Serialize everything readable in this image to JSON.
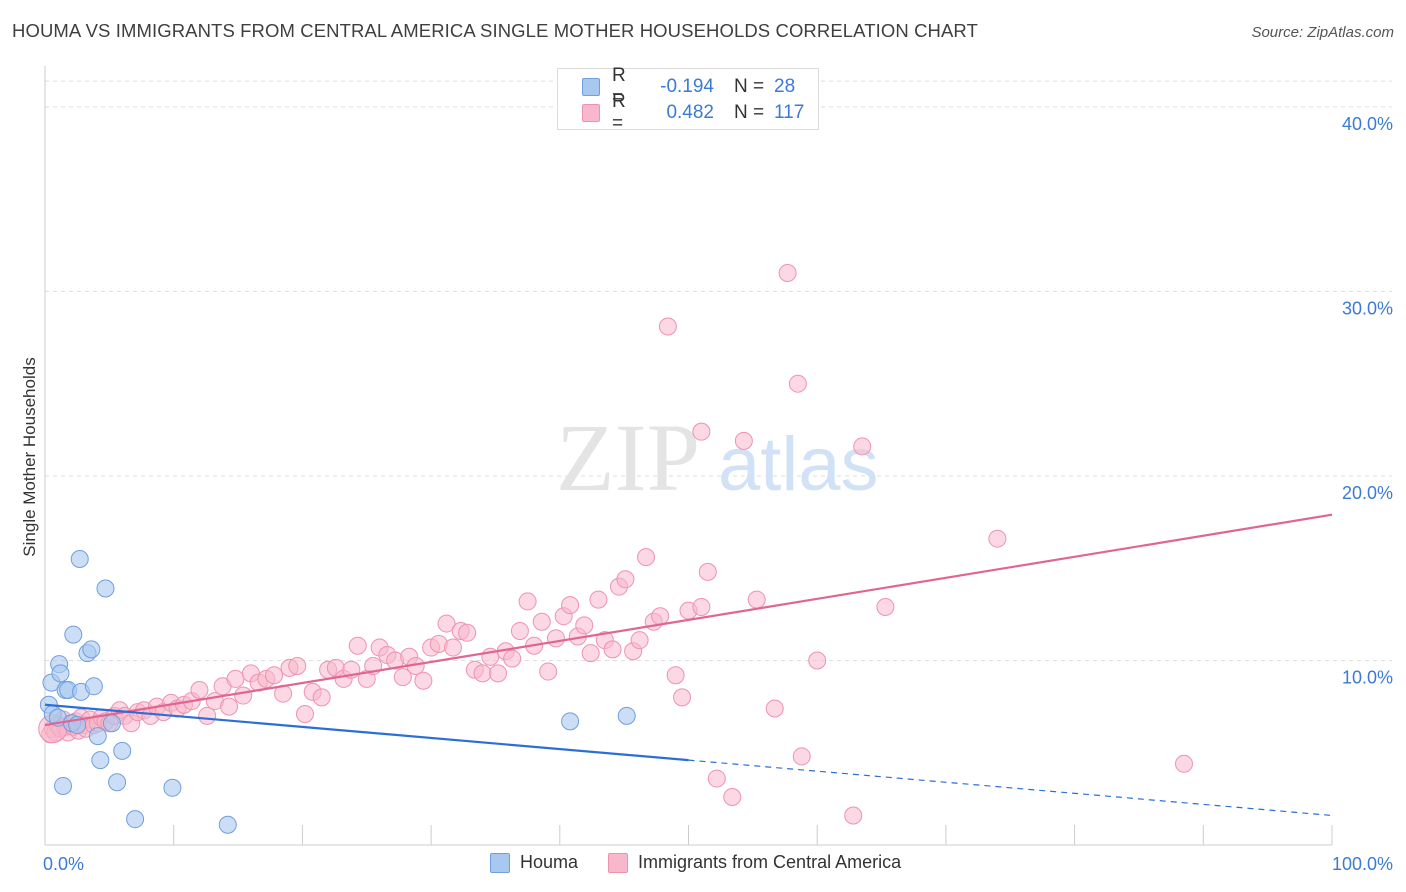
{
  "title": "HOUMA VS IMMIGRANTS FROM CENTRAL AMERICA SINGLE MOTHER HOUSEHOLDS CORRELATION CHART",
  "source": "Source: ZipAtlas.com",
  "watermark": {
    "zip": "ZIP",
    "atlas": "atlas"
  },
  "legend": {
    "rows": [
      {
        "r_label": "R =",
        "r_value": "-0.194",
        "n_label": "N =",
        "n_value": "28"
      },
      {
        "r_label": "R =",
        "r_value": "0.482",
        "n_label": "N =",
        "n_value": "117"
      }
    ]
  },
  "bottom_legend": {
    "houma": "Houma",
    "immigrants": "Immigrants from Central America"
  },
  "colors": {
    "houma_fill": "#a9c8f0",
    "houma_stroke": "#6f9fe0",
    "houma_line": "#2b6fd6",
    "imm_fill": "#f7b8cc",
    "imm_stroke": "#ef92b0",
    "imm_line": "#e0668f",
    "axis_label": "#3a7bd5",
    "grid": "#dddddd"
  },
  "chart_data": {
    "type": "scatter",
    "title": "HOUMA VS IMMIGRANTS FROM CENTRAL AMERICA SINGLE MOTHER HOUSEHOLDS CORRELATION CHART",
    "xlabel": "",
    "ylabel": "Single Mother Households",
    "xlim": [
      0,
      100
    ],
    "ylim": [
      0,
      42
    ],
    "x_tick_labels": [
      "0.0%",
      "100.0%"
    ],
    "y_ticks": [
      10,
      20,
      30,
      40
    ],
    "y_tick_labels": [
      "10.0%",
      "20.0%",
      "30.0%",
      "40.0%"
    ],
    "grid": true,
    "legend_position": "top-center",
    "series": [
      {
        "name": "Houma",
        "r": -0.194,
        "n": 28,
        "points": [
          [
            0.3,
            7.6
          ],
          [
            0.5,
            8.8
          ],
          [
            0.6,
            7.1
          ],
          [
            1.0,
            6.9
          ],
          [
            1.1,
            9.8
          ],
          [
            1.2,
            9.3
          ],
          [
            1.4,
            3.2
          ],
          [
            1.6,
            8.4
          ],
          [
            1.8,
            8.4
          ],
          [
            2.1,
            6.6
          ],
          [
            2.2,
            11.4
          ],
          [
            2.5,
            6.5
          ],
          [
            2.7,
            15.5
          ],
          [
            2.8,
            8.3
          ],
          [
            3.3,
            10.4
          ],
          [
            3.6,
            10.6
          ],
          [
            3.8,
            8.6
          ],
          [
            4.1,
            5.9
          ],
          [
            4.3,
            4.6
          ],
          [
            4.7,
            13.9
          ],
          [
            5.2,
            6.6
          ],
          [
            5.6,
            3.4
          ],
          [
            6.0,
            5.1
          ],
          [
            7.0,
            1.4
          ],
          [
            9.9,
            3.1
          ],
          [
            14.2,
            1.1
          ],
          [
            40.8,
            6.7
          ],
          [
            45.2,
            7.0
          ]
        ],
        "trend": {
          "x0": 0,
          "y0": 7.6,
          "x1": 50.0,
          "y1": 4.6,
          "x_end": 100,
          "y_end": 1.6
        }
      },
      {
        "name": "Immigrants from Central America",
        "r": 0.482,
        "n": 117,
        "points": [
          [
            0.4,
            6.0
          ],
          [
            0.6,
            6.3
          ],
          [
            0.8,
            6.1
          ],
          [
            1.0,
            6.5
          ],
          [
            1.2,
            6.3
          ],
          [
            1.4,
            6.8
          ],
          [
            1.6,
            6.4
          ],
          [
            1.8,
            6.1
          ],
          [
            2.0,
            6.6
          ],
          [
            2.2,
            6.4
          ],
          [
            2.4,
            6.7
          ],
          [
            2.6,
            6.2
          ],
          [
            2.8,
            6.9
          ],
          [
            3.0,
            6.5
          ],
          [
            3.2,
            6.3
          ],
          [
            3.5,
            6.8
          ],
          [
            3.8,
            6.5
          ],
          [
            4.1,
            6.6
          ],
          [
            4.4,
            6.9
          ],
          [
            4.7,
            6.7
          ],
          [
            5.0,
            6.6
          ],
          [
            5.4,
            7.0
          ],
          [
            5.8,
            7.3
          ],
          [
            6.2,
            7.0
          ],
          [
            6.7,
            6.6
          ],
          [
            7.2,
            7.2
          ],
          [
            7.7,
            7.3
          ],
          [
            8.2,
            7.0
          ],
          [
            8.7,
            7.5
          ],
          [
            9.2,
            7.2
          ],
          [
            9.8,
            7.7
          ],
          [
            10.3,
            7.4
          ],
          [
            10.8,
            7.6
          ],
          [
            11.4,
            7.8
          ],
          [
            12.0,
            8.4
          ],
          [
            12.6,
            7.0
          ],
          [
            13.2,
            7.8
          ],
          [
            13.8,
            8.6
          ],
          [
            14.3,
            7.5
          ],
          [
            14.8,
            9.0
          ],
          [
            15.4,
            8.1
          ],
          [
            16.0,
            9.3
          ],
          [
            16.6,
            8.8
          ],
          [
            17.2,
            9.0
          ],
          [
            17.8,
            9.2
          ],
          [
            18.5,
            8.2
          ],
          [
            19.0,
            9.6
          ],
          [
            19.6,
            9.7
          ],
          [
            20.2,
            7.1
          ],
          [
            20.8,
            8.3
          ],
          [
            21.5,
            8.0
          ],
          [
            22.0,
            9.5
          ],
          [
            22.6,
            9.6
          ],
          [
            23.2,
            9.0
          ],
          [
            23.8,
            9.5
          ],
          [
            24.3,
            10.8
          ],
          [
            25.0,
            9.0
          ],
          [
            25.5,
            9.7
          ],
          [
            26.0,
            10.7
          ],
          [
            26.6,
            10.3
          ],
          [
            27.2,
            10.0
          ],
          [
            27.8,
            9.1
          ],
          [
            28.3,
            10.2
          ],
          [
            28.8,
            9.7
          ],
          [
            29.4,
            8.9
          ],
          [
            30.0,
            10.7
          ],
          [
            30.6,
            10.9
          ],
          [
            31.2,
            12.0
          ],
          [
            31.7,
            10.7
          ],
          [
            32.3,
            11.6
          ],
          [
            32.8,
            11.5
          ],
          [
            33.4,
            9.5
          ],
          [
            34.0,
            9.3
          ],
          [
            34.6,
            10.2
          ],
          [
            35.2,
            9.3
          ],
          [
            35.8,
            10.5
          ],
          [
            36.3,
            10.1
          ],
          [
            36.9,
            11.6
          ],
          [
            37.5,
            13.2
          ],
          [
            38.0,
            10.8
          ],
          [
            38.6,
            12.1
          ],
          [
            39.1,
            9.4
          ],
          [
            39.7,
            11.2
          ],
          [
            40.3,
            12.4
          ],
          [
            40.8,
            13.0
          ],
          [
            41.4,
            11.3
          ],
          [
            41.9,
            11.9
          ],
          [
            42.4,
            10.4
          ],
          [
            43.0,
            13.3
          ],
          [
            43.5,
            11.1
          ],
          [
            44.1,
            10.6
          ],
          [
            44.6,
            14.0
          ],
          [
            45.1,
            14.4
          ],
          [
            45.7,
            10.5
          ],
          [
            46.2,
            11.1
          ],
          [
            46.7,
            15.6
          ],
          [
            47.3,
            12.1
          ],
          [
            47.8,
            12.4
          ],
          [
            48.4,
            28.1
          ],
          [
            49.0,
            9.2
          ],
          [
            49.5,
            8.0
          ],
          [
            50.0,
            12.7
          ],
          [
            51.0,
            22.4
          ],
          [
            51.5,
            14.8
          ],
          [
            52.2,
            3.6
          ],
          [
            53.4,
            2.6
          ],
          [
            54.3,
            21.9
          ],
          [
            55.3,
            13.3
          ],
          [
            56.7,
            7.4
          ],
          [
            57.7,
            31.0
          ],
          [
            58.5,
            25.0
          ],
          [
            58.8,
            4.8
          ],
          [
            60.0,
            10.0
          ],
          [
            62.8,
            1.6
          ],
          [
            63.5,
            21.6
          ],
          [
            65.3,
            12.9
          ],
          [
            74.0,
            16.6
          ],
          [
            88.5,
            4.4
          ],
          [
            51.0,
            12.9
          ]
        ],
        "trend": {
          "x0": 0,
          "y0": 6.5,
          "x1": 100,
          "y1": 17.9
        }
      }
    ]
  }
}
